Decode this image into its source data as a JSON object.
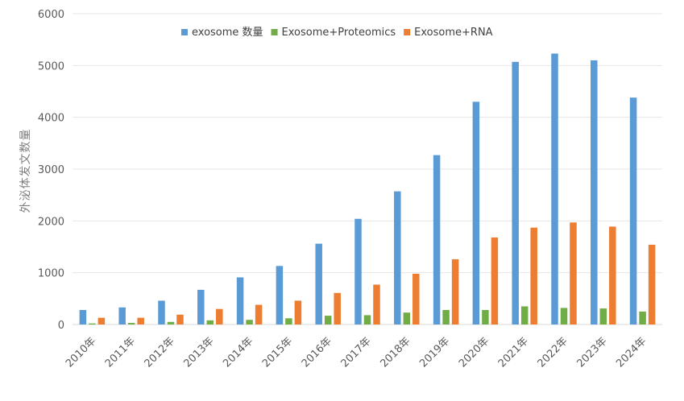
{
  "chart_data": {
    "type": "bar",
    "title": "",
    "xlabel": "",
    "ylabel": "外泌体发文数量",
    "ylim": [
      0,
      6000
    ],
    "yticks": [
      0,
      1000,
      2000,
      3000,
      4000,
      5000,
      6000
    ],
    "grid": true,
    "legend_position": "top-right",
    "categories": [
      "2010年",
      "2011年",
      "2012年",
      "2013年",
      "2014年",
      "2015年",
      "2016年",
      "2017年",
      "2018年",
      "2019年",
      "2020年",
      "2021年",
      "2022年",
      "2023年",
      "2024年"
    ],
    "series": [
      {
        "name": "exosome 数量",
        "color": "#5b9bd5",
        "values": [
          280,
          330,
          460,
          670,
          910,
          1130,
          1560,
          2040,
          2570,
          3270,
          4300,
          5070,
          5230,
          5100,
          4380
        ]
      },
      {
        "name": "Exosome+Proteomics",
        "color": "#70ad47",
        "values": [
          20,
          30,
          50,
          80,
          90,
          120,
          170,
          180,
          230,
          280,
          280,
          350,
          320,
          310,
          250
        ]
      },
      {
        "name": "Exosome+RNA",
        "color": "#ed7d31",
        "values": [
          130,
          130,
          190,
          300,
          380,
          460,
          610,
          770,
          980,
          1260,
          1680,
          1870,
          1970,
          1890,
          1540
        ]
      }
    ]
  }
}
